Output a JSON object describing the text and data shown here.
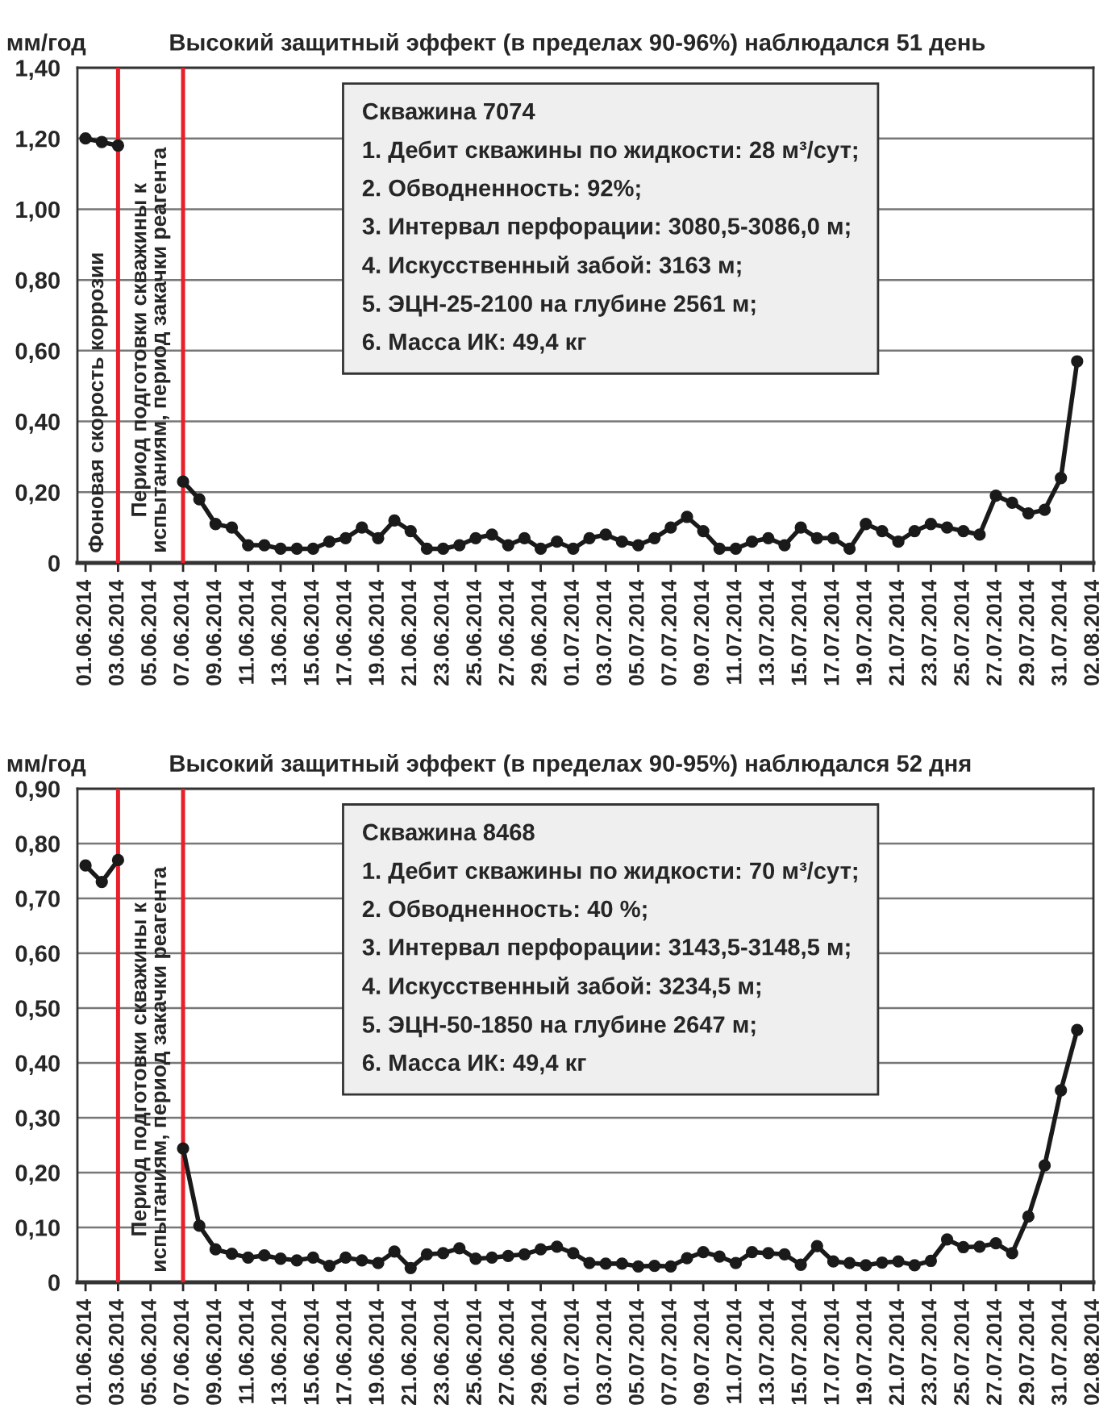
{
  "chart_data": [
    {
      "type": "line",
      "title": "Высокий защитный эффект (в пределах 90-96%) наблюдался 51 день",
      "ylabel": "мм/год",
      "x": [
        "2014-06-01",
        "2014-06-02",
        "2014-06-03",
        "2014-06-04",
        "2014-06-05",
        "2014-06-06",
        "2014-06-07",
        "2014-06-08",
        "2014-06-09",
        "2014-06-10",
        "2014-06-11",
        "2014-06-12",
        "2014-06-13",
        "2014-06-14",
        "2014-06-15",
        "2014-06-16",
        "2014-06-17",
        "2014-06-18",
        "2014-06-19",
        "2014-06-20",
        "2014-06-21",
        "2014-06-22",
        "2014-06-23",
        "2014-06-24",
        "2014-06-25",
        "2014-06-26",
        "2014-06-27",
        "2014-06-28",
        "2014-06-29",
        "2014-06-30",
        "2014-07-01",
        "2014-07-02",
        "2014-07-03",
        "2014-07-04",
        "2014-07-05",
        "2014-07-06",
        "2014-07-07",
        "2014-07-08",
        "2014-07-09",
        "2014-07-10",
        "2014-07-11",
        "2014-07-12",
        "2014-07-13",
        "2014-07-14",
        "2014-07-15",
        "2014-07-16",
        "2014-07-17",
        "2014-07-18",
        "2014-07-19",
        "2014-07-20",
        "2014-07-21",
        "2014-07-22",
        "2014-07-23",
        "2014-07-24",
        "2014-07-25",
        "2014-07-26",
        "2014-07-27",
        "2014-07-28",
        "2014-07-29",
        "2014-07-30",
        "2014-07-31",
        "2014-08-01"
      ],
      "series": [
        {
          "color": "#1a1a1a",
          "values": [
            1.2,
            1.19,
            1.18,
            null,
            null,
            null,
            0.23,
            0.18,
            0.11,
            0.1,
            0.05,
            0.05,
            0.04,
            0.04,
            0.04,
            0.06,
            0.07,
            0.1,
            0.07,
            0.12,
            0.09,
            0.04,
            0.04,
            0.05,
            0.07,
            0.08,
            0.05,
            0.07,
            0.04,
            0.06,
            0.04,
            0.07,
            0.08,
            0.06,
            0.05,
            0.07,
            0.1,
            0.13,
            0.09,
            0.04,
            0.04,
            0.06,
            0.07,
            0.05,
            0.1,
            0.07,
            0.07,
            0.04,
            0.11,
            0.09,
            0.06,
            0.09,
            0.11,
            0.1,
            0.09,
            0.08,
            0.19,
            0.17,
            0.14,
            0.15,
            0.24,
            0.57
          ]
        }
      ],
      "xlim": [
        "2014-05-31T12:00",
        "2014-08-02"
      ],
      "xticks": [
        {
          "value": "2014-06-01",
          "label": "01.06.2014"
        },
        {
          "value": "2014-06-03",
          "label": "03.06.2014"
        },
        {
          "value": "2014-06-05",
          "label": "05.06.2014"
        },
        {
          "value": "2014-06-07",
          "label": "07.06.2014"
        },
        {
          "value": "2014-06-09",
          "label": "09.06.2014"
        },
        {
          "value": "2014-06-11",
          "label": "11.06.2014"
        },
        {
          "value": "2014-06-13",
          "label": "13.06.2014"
        },
        {
          "value": "2014-06-15",
          "label": "15.06.2014"
        },
        {
          "value": "2014-06-17",
          "label": "17.06.2014"
        },
        {
          "value": "2014-06-19",
          "label": "19.06.2014"
        },
        {
          "value": "2014-06-21",
          "label": "21.06.2014"
        },
        {
          "value": "2014-06-23",
          "label": "23.06.2014"
        },
        {
          "value": "2014-06-25",
          "label": "25.06.2014"
        },
        {
          "value": "2014-06-27",
          "label": "27.06.2014"
        },
        {
          "value": "2014-06-29",
          "label": "29.06.2014"
        },
        {
          "value": "2014-07-01",
          "label": "01.07.2014"
        },
        {
          "value": "2014-07-03",
          "label": "03.07.2014"
        },
        {
          "value": "2014-07-05",
          "label": "05.07.2014"
        },
        {
          "value": "2014-07-07",
          "label": "07.07.2014"
        },
        {
          "value": "2014-07-09",
          "label": "09.07.2014"
        },
        {
          "value": "2014-07-11",
          "label": "11.07.2014"
        },
        {
          "value": "2014-07-13",
          "label": "13.07.2014"
        },
        {
          "value": "2014-07-15",
          "label": "15.07.2014"
        },
        {
          "value": "2014-07-17",
          "label": "17.07.2014"
        },
        {
          "value": "2014-07-19",
          "label": "19.07.2014"
        },
        {
          "value": "2014-07-21",
          "label": "21.07.2014"
        },
        {
          "value": "2014-07-23",
          "label": "23.07.2014"
        },
        {
          "value": "2014-07-25",
          "label": "25.07.2014"
        },
        {
          "value": "2014-07-27",
          "label": "27.07.2014"
        },
        {
          "value": "2014-07-29",
          "label": "29.07.2014"
        },
        {
          "value": "2014-07-31",
          "label": "31.07.2014"
        },
        {
          "value": "2014-08-02",
          "label": "02.08.2014"
        }
      ],
      "ylim": [
        0,
        1.4
      ],
      "yticks": [
        {
          "value": 0,
          "label": "0"
        },
        {
          "value": 0.2,
          "label": "0,20"
        },
        {
          "value": 0.4,
          "label": "0,40"
        },
        {
          "value": 0.6,
          "label": "0,60"
        },
        {
          "value": 0.8,
          "label": "0,80"
        },
        {
          "value": 1.0,
          "label": "1,00"
        },
        {
          "value": 1.2,
          "label": "1,20"
        },
        {
          "value": 1.4,
          "label": "1,40"
        }
      ],
      "grid": "y",
      "marker": "circle",
      "line_style": "solid",
      "ref_lines": [
        {
          "axis": "x",
          "value": "2014-06-03",
          "color": "#e8202a"
        },
        {
          "axis": "x",
          "value": "2014-06-07",
          "color": "#e8202a"
        }
      ],
      "annotations": [
        "Фоновая скорость коррозии",
        "Период подготовки скважины к\nиспытаниям, период закачки реагента",
        "Скважина 7074\n1. Дебит скважины по жидкости: 28 м³/сут;\n2. Обводненность: 92%;\n3. Интервал перфорации: 3080,5-3086,0 м;\n4. Искусственный забой: 3163 м;\n5. ЭЦН-25-2100 на глубине 2561 м;\n6. Масса ИК: 49,4 кг"
      ]
    },
    {
      "type": "line",
      "title": "Высокий защитный эффект (в пределах 90-95%) наблюдался 52 дня",
      "ylabel": "мм/год",
      "x": [
        "2014-06-01",
        "2014-06-02",
        "2014-06-03",
        "2014-06-04",
        "2014-06-05",
        "2014-06-06",
        "2014-06-07",
        "2014-06-08",
        "2014-06-09",
        "2014-06-10",
        "2014-06-11",
        "2014-06-12",
        "2014-06-13",
        "2014-06-14",
        "2014-06-15",
        "2014-06-16",
        "2014-06-17",
        "2014-06-18",
        "2014-06-19",
        "2014-06-20",
        "2014-06-21",
        "2014-06-22",
        "2014-06-23",
        "2014-06-24",
        "2014-06-25",
        "2014-06-26",
        "2014-06-27",
        "2014-06-28",
        "2014-06-29",
        "2014-06-30",
        "2014-07-01",
        "2014-07-02",
        "2014-07-03",
        "2014-07-04",
        "2014-07-05",
        "2014-07-06",
        "2014-07-07",
        "2014-07-08",
        "2014-07-09",
        "2014-07-10",
        "2014-07-11",
        "2014-07-12",
        "2014-07-13",
        "2014-07-14",
        "2014-07-15",
        "2014-07-16",
        "2014-07-17",
        "2014-07-18",
        "2014-07-19",
        "2014-07-20",
        "2014-07-21",
        "2014-07-22",
        "2014-07-23",
        "2014-07-24",
        "2014-07-25",
        "2014-07-26",
        "2014-07-27",
        "2014-07-28",
        "2014-07-29",
        "2014-07-30",
        "2014-07-31",
        "2014-08-01"
      ],
      "series": [
        {
          "color": "#1a1a1a",
          "values": [
            0.76,
            0.73,
            0.77,
            null,
            null,
            null,
            0.244,
            0.103,
            0.06,
            0.052,
            0.045,
            0.049,
            0.043,
            0.04,
            0.045,
            0.03,
            0.045,
            0.04,
            0.035,
            0.056,
            0.026,
            0.051,
            0.053,
            0.062,
            0.043,
            0.045,
            0.048,
            0.051,
            0.06,
            0.065,
            0.053,
            0.035,
            0.034,
            0.034,
            0.029,
            0.03,
            0.029,
            0.044,
            0.055,
            0.047,
            0.035,
            0.055,
            0.053,
            0.051,
            0.032,
            0.066,
            0.038,
            0.035,
            0.031,
            0.036,
            0.038,
            0.031,
            0.039,
            0.078,
            0.064,
            0.065,
            0.071,
            0.053,
            0.12,
            0.213,
            0.35,
            0.46
          ]
        }
      ],
      "xlim": [
        "2014-05-31T12:00",
        "2014-08-02"
      ],
      "xticks": [
        {
          "value": "2014-06-01",
          "label": "01.06.2014"
        },
        {
          "value": "2014-06-03",
          "label": "03.06.2014"
        },
        {
          "value": "2014-06-05",
          "label": "05.06.2014"
        },
        {
          "value": "2014-06-07",
          "label": "07.06.2014"
        },
        {
          "value": "2014-06-09",
          "label": "09.06.2014"
        },
        {
          "value": "2014-06-11",
          "label": "11.06.2014"
        },
        {
          "value": "2014-06-13",
          "label": "13.06.2014"
        },
        {
          "value": "2014-06-15",
          "label": "15.06.2014"
        },
        {
          "value": "2014-06-17",
          "label": "17.06.2014"
        },
        {
          "value": "2014-06-19",
          "label": "19.06.2014"
        },
        {
          "value": "2014-06-21",
          "label": "21.06.2014"
        },
        {
          "value": "2014-06-23",
          "label": "23.06.2014"
        },
        {
          "value": "2014-06-25",
          "label": "25.06.2014"
        },
        {
          "value": "2014-06-27",
          "label": "27.06.2014"
        },
        {
          "value": "2014-06-29",
          "label": "29.06.2014"
        },
        {
          "value": "2014-07-01",
          "label": "01.07.2014"
        },
        {
          "value": "2014-07-03",
          "label": "03.07.2014"
        },
        {
          "value": "2014-07-05",
          "label": "05.07.2014"
        },
        {
          "value": "2014-07-07",
          "label": "07.07.2014"
        },
        {
          "value": "2014-07-09",
          "label": "09.07.2014"
        },
        {
          "value": "2014-07-11",
          "label": "11.07.2014"
        },
        {
          "value": "2014-07-13",
          "label": "13.07.2014"
        },
        {
          "value": "2014-07-15",
          "label": "15.07.2014"
        },
        {
          "value": "2014-07-17",
          "label": "17.07.2014"
        },
        {
          "value": "2014-07-19",
          "label": "19.07.2014"
        },
        {
          "value": "2014-07-21",
          "label": "21.07.2014"
        },
        {
          "value": "2014-07-23",
          "label": "23.07.2014"
        },
        {
          "value": "2014-07-25",
          "label": "25.07.2014"
        },
        {
          "value": "2014-07-27",
          "label": "27.07.2014"
        },
        {
          "value": "2014-07-29",
          "label": "29.07.2014"
        },
        {
          "value": "2014-07-31",
          "label": "31.07.2014"
        },
        {
          "value": "2014-08-02",
          "label": "02.08.2014"
        }
      ],
      "ylim": [
        0,
        0.9
      ],
      "yticks": [
        {
          "value": 0,
          "label": "0"
        },
        {
          "value": 0.1,
          "label": "0,10"
        },
        {
          "value": 0.2,
          "label": "0,20"
        },
        {
          "value": 0.3,
          "label": "0,30"
        },
        {
          "value": 0.4,
          "label": "0,40"
        },
        {
          "value": 0.5,
          "label": "0,50"
        },
        {
          "value": 0.6,
          "label": "0,60"
        },
        {
          "value": 0.7,
          "label": "0,70"
        },
        {
          "value": 0.8,
          "label": "0,80"
        },
        {
          "value": 0.9,
          "label": "0,90"
        }
      ],
      "grid": "y",
      "marker": "circle",
      "line_style": "solid",
      "ref_lines": [
        {
          "axis": "x",
          "value": "2014-06-03",
          "color": "#e8202a"
        },
        {
          "axis": "x",
          "value": "2014-06-07",
          "color": "#e8202a"
        }
      ],
      "annotations": [
        null,
        "Период подготовки скважины к\nиспытаниям, период закачки реагента",
        "Скважина 8468\n1. Дебит скважины по жидкости: 70 м³/сут;\n2. Обводненность: 40 %;\n3. Интервал перфорации: 3143,5-3148,5 м;\n4. Искусственный забой: 3234,5 м;\n5. ЭЦН-50-1850 на глубине 2647 м;\n6. Масса ИК: 49,4 кг"
      ]
    }
  ]
}
